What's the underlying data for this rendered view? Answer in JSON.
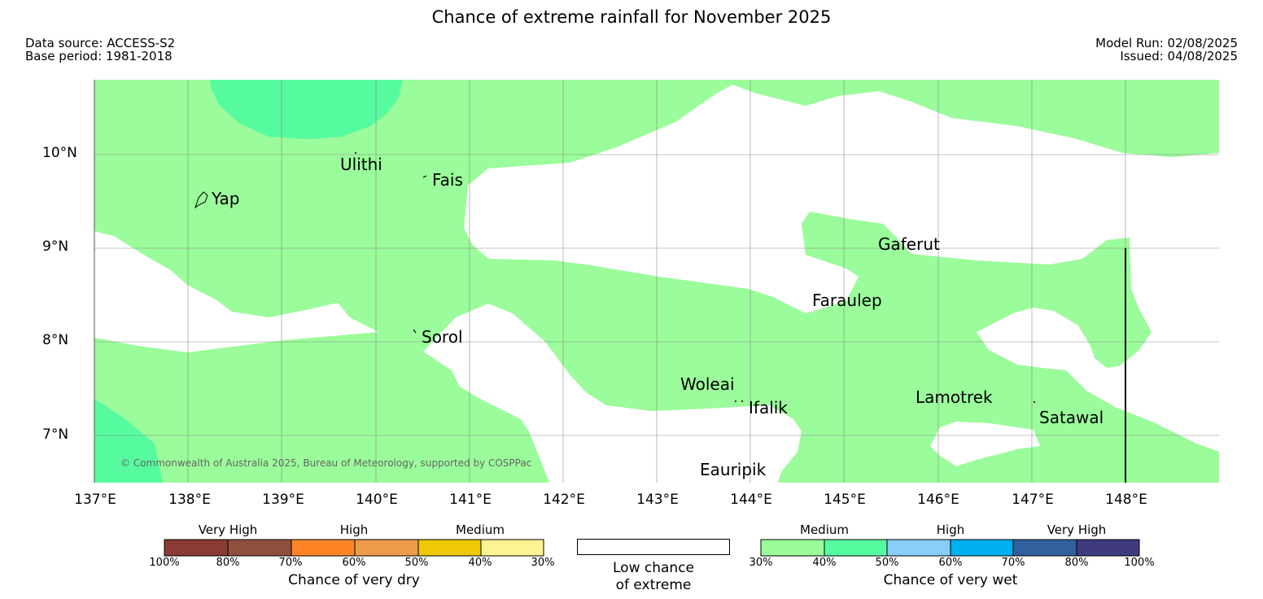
{
  "header": {
    "title": "Chance of extreme rainfall for November 2025",
    "data_source": "Data source: ACCESS-S2",
    "base_period": "Base period: 1981-2018",
    "model_run": "Model Run: 02/08/2025",
    "issued": "Issued: 04/08/2025"
  },
  "map": {
    "lat_ticks": [
      "10°N",
      "9°N",
      "8°N",
      "7°N"
    ],
    "lon_ticks": [
      "137°E",
      "138°E",
      "139°E",
      "140°E",
      "141°E",
      "142°E",
      "143°E",
      "144°E",
      "145°E",
      "146°E",
      "147°E",
      "148°E"
    ],
    "places": {
      "ulithi": "Ulithi",
      "fais": "Fais",
      "yap": "Yap",
      "gaferut": "Gaferut",
      "faraulep": "Faraulep",
      "sorol": "Sorol",
      "woleai": "Woleai",
      "ifalik": "Ifalik",
      "lamotrek": "Lamotrek",
      "satawal": "Satawal",
      "eauripik": "Eauripik"
    },
    "credit": "© Commonwealth of Australia 2025, Bureau of Meteorology, supported by COSPPac",
    "colors": {
      "medium_wet": "#9afc9a",
      "high_wet_40_50": "#56fba0",
      "background": "#ffffff"
    }
  },
  "legend": {
    "dry": {
      "categories": [
        "Very High",
        "High",
        "Medium"
      ],
      "percents": [
        "100%",
        "80%",
        "70%",
        "60%",
        "50%",
        "40%",
        "30%"
      ],
      "colors": [
        "#8b3a34",
        "#8e4f3d",
        "#fe8526",
        "#ee9c4c",
        "#efc904",
        "#fef392"
      ],
      "title": "Chance of very dry"
    },
    "low": {
      "line1": "Low chance",
      "line2": "of extreme"
    },
    "wet": {
      "categories": [
        "Medium",
        "High",
        "Very High"
      ],
      "percents": [
        "30%",
        "40%",
        "50%",
        "60%",
        "70%",
        "80%",
        "100%"
      ],
      "colors": [
        "#9afc9a",
        "#56fba0",
        "#87cefa",
        "#00b0f0",
        "#31609e",
        "#3f3b7c"
      ],
      "title": "Chance of very wet"
    }
  }
}
